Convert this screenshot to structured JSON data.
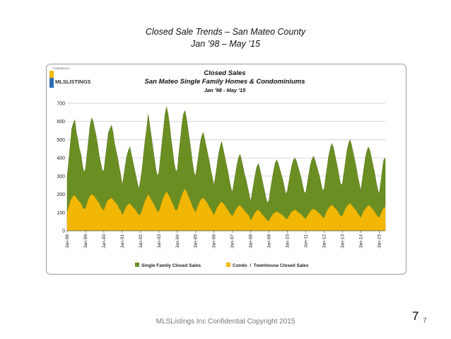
{
  "slide": {
    "title_line1": "Closed Sale Trends – San Mateo County",
    "title_line2": "Jan ’98 – May ’15",
    "footer": "MLSListings Inc Confidential Copyright 2015",
    "page_number_large": "7",
    "page_number_small": "7"
  },
  "logo": {
    "small_text": "POWERED BY",
    "brand": "MLSLISTINGS"
  },
  "colors": {
    "single_family": "#6b8e23",
    "single_family_edge": "#557018",
    "condo": "#f2b705",
    "grid": "#c9c9c9",
    "frame": "#9a9a9a"
  },
  "chart_data": {
    "type": "area",
    "stacked": true,
    "title": "Closed Sales",
    "subtitle": "San Mateo Single Family Homes & Condominiums",
    "subtitle2": "Jan '98 - May '15",
    "xlabel": "",
    "ylabel": "",
    "ylim": [
      0,
      700
    ],
    "yticks": [
      0,
      100,
      200,
      300,
      400,
      500,
      600,
      700
    ],
    "grid": true,
    "legend_position": "bottom",
    "x_ticks": [
      "Jan-98",
      "Jan-99",
      "Jan-00",
      "Jan-01",
      "Jan-02",
      "Jan-03",
      "Jan-04",
      "Jan-05",
      "Jan-06",
      "Jan-07",
      "Jan-08",
      "Jan-09",
      "Jan-10",
      "Jan-11",
      "Jan-12",
      "Jan-13",
      "Jan-14",
      "Jan-15"
    ],
    "series": [
      {
        "name": "Single Family Closed Sales",
        "annual_points": [
          [
            300,
            380,
            470,
            560,
            590,
            610,
            540,
            500,
            450,
            420,
            360,
            320
          ],
          [
            340,
            420,
            500,
            580,
            620,
            600,
            560,
            520,
            470,
            410,
            370,
            330
          ],
          [
            330,
            400,
            470,
            540,
            560,
            580,
            540,
            480,
            440,
            400,
            350,
            310
          ],
          [
            250,
            300,
            360,
            410,
            440,
            460,
            420,
            380,
            340,
            300,
            260,
            230
          ],
          [
            280,
            340,
            420,
            500,
            560,
            640,
            580,
            520,
            460,
            400,
            340,
            300
          ],
          [
            320,
            400,
            480,
            560,
            640,
            680,
            640,
            580,
            500,
            440,
            370,
            330
          ],
          [
            330,
            420,
            500,
            580,
            640,
            660,
            620,
            560,
            500,
            440,
            370,
            320
          ],
          [
            300,
            360,
            420,
            480,
            520,
            540,
            500,
            460,
            420,
            380,
            330,
            290
          ],
          [
            250,
            300,
            360,
            420,
            460,
            490,
            450,
            410,
            370,
            330,
            280,
            240
          ],
          [
            210,
            260,
            310,
            360,
            400,
            420,
            390,
            350,
            310,
            280,
            240,
            200
          ],
          [
            160,
            210,
            260,
            310,
            350,
            370,
            340,
            300,
            260,
            220,
            180,
            150
          ],
          [
            170,
            230,
            280,
            330,
            370,
            390,
            370,
            340,
            310,
            280,
            240,
            200
          ],
          [
            220,
            270,
            320,
            360,
            390,
            400,
            380,
            350,
            320,
            290,
            250,
            210
          ],
          [
            210,
            260,
            310,
            360,
            390,
            410,
            390,
            360,
            330,
            300,
            260,
            220
          ],
          [
            230,
            290,
            350,
            410,
            450,
            480,
            460,
            420,
            380,
            340,
            290,
            250
          ],
          [
            260,
            320,
            380,
            440,
            480,
            500,
            470,
            430,
            390,
            350,
            300,
            260
          ],
          [
            220,
            280,
            340,
            400,
            440,
            460,
            440,
            400,
            360,
            320,
            270,
            230
          ],
          [
            200,
            260,
            330,
            390,
            400
          ]
        ]
      },
      {
        "name": "Condo / Townhouse Closed Sales",
        "annual_points": [
          [
            100,
            130,
            160,
            180,
            190,
            195,
            180,
            170,
            160,
            150,
            130,
            120
          ],
          [
            120,
            150,
            175,
            190,
            200,
            195,
            185,
            175,
            160,
            150,
            130,
            120
          ],
          [
            110,
            135,
            160,
            170,
            175,
            180,
            170,
            160,
            150,
            140,
            120,
            110
          ],
          [
            85,
            100,
            120,
            135,
            145,
            150,
            140,
            130,
            120,
            110,
            95,
            85
          ],
          [
            90,
            115,
            140,
            165,
            180,
            200,
            185,
            170,
            155,
            140,
            120,
            105
          ],
          [
            105,
            130,
            160,
            185,
            200,
            215,
            200,
            185,
            165,
            150,
            125,
            110
          ],
          [
            115,
            140,
            170,
            195,
            215,
            230,
            215,
            195,
            175,
            155,
            130,
            115
          ],
          [
            100,
            125,
            145,
            165,
            175,
            180,
            170,
            160,
            145,
            130,
            115,
            100
          ],
          [
            85,
            105,
            125,
            140,
            150,
            160,
            150,
            140,
            125,
            115,
            100,
            90
          ],
          [
            80,
            95,
            110,
            125,
            135,
            140,
            130,
            120,
            110,
            100,
            90,
            80
          ],
          [
            55,
            70,
            85,
            100,
            110,
            115,
            105,
            95,
            85,
            75,
            65,
            55
          ],
          [
            55,
            70,
            85,
            95,
            100,
            105,
            100,
            95,
            90,
            85,
            75,
            65
          ],
          [
            65,
            80,
            95,
            105,
            110,
            115,
            110,
            100,
            95,
            90,
            80,
            70
          ],
          [
            65,
            80,
            95,
            105,
            115,
            120,
            115,
            110,
            100,
            95,
            85,
            75
          ],
          [
            70,
            90,
            110,
            125,
            135,
            140,
            135,
            125,
            115,
            105,
            90,
            80
          ],
          [
            80,
            100,
            120,
            135,
            145,
            150,
            140,
            130,
            120,
            110,
            95,
            85
          ],
          [
            70,
            90,
            110,
            120,
            130,
            140,
            135,
            125,
            115,
            105,
            90,
            80
          ],
          [
            70,
            90,
            110,
            125,
            130
          ]
        ]
      }
    ],
    "legend": [
      "Single Family Closed Sales",
      "Condo  /  Townhouse Closed Sales"
    ]
  }
}
